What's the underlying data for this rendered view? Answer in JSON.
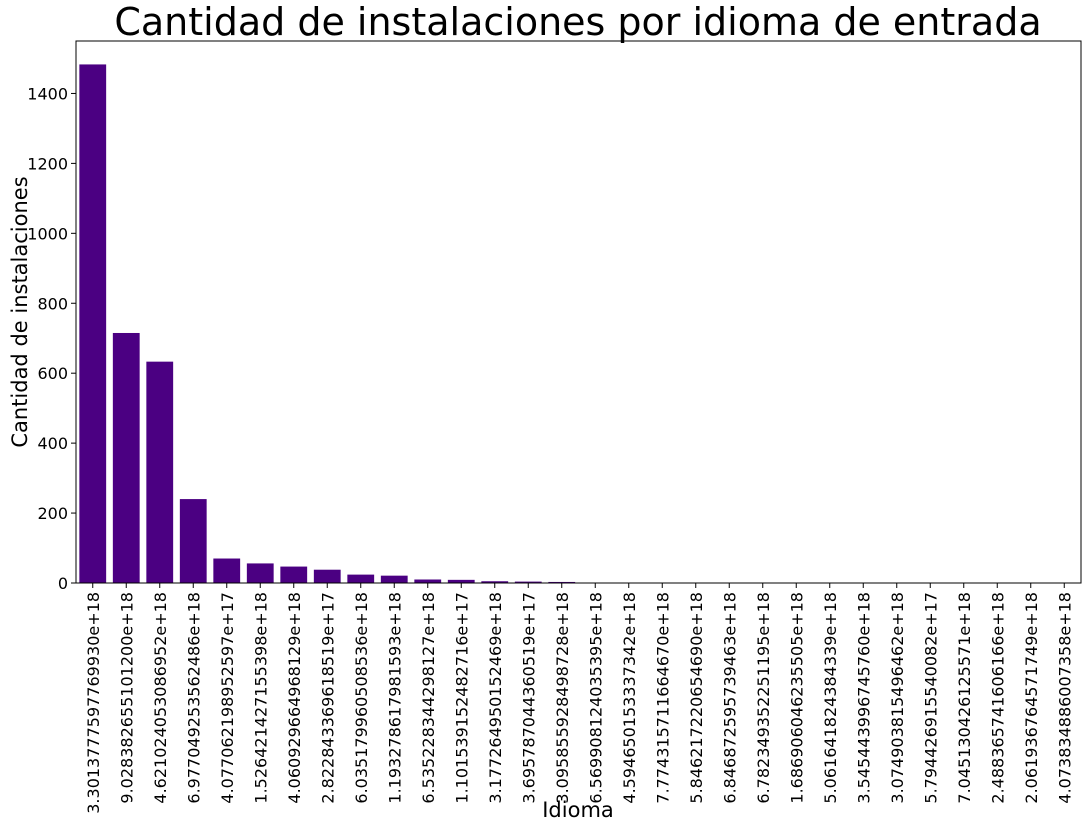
{
  "chart_data": {
    "type": "bar",
    "title": "Cantidad de instalaciones por idioma de entrada",
    "xlabel": "Idioma",
    "ylabel": "Cantidad de instalaciones",
    "ylim": [
      0,
      1550
    ],
    "yticks": [
      0,
      200,
      400,
      600,
      800,
      1000,
      1200,
      1400
    ],
    "grid": false,
    "bar_color": "#4b0082",
    "categories": [
      "3.3013777597769930e+18",
      "9.028382655101200e+18",
      "4.621024053086952e+18",
      "6.977049253562486e+18",
      "4.077062198952597e+17",
      "1.526421427155398e+18",
      "4.060929664968129e+18",
      "2.822843369618519e+17",
      "6.035179960508536e+18",
      "1.193278617981593e+18",
      "6.535228344298127e+18",
      "1.101539152482716e+17",
      "3.177264950152469e+18",
      "3.695787044360519e+17",
      "3.095855928498728e+18",
      "6.569908124035395e+18",
      "4.594650153337342e+18",
      "7.774315711664670e+18",
      "5.846217220654690e+18",
      "6.846872595739463e+18",
      "6.782349352251195e+18",
      "1.686906046235505e+18",
      "5.061641824384339e+18",
      "3.545443996745760e+18",
      "3.074903815496462e+18",
      "5.794426915540082e+17",
      "7.045130426125571e+18",
      "2.488365741606166e+18",
      "2.061936764571749e+18",
      "4.073834886007358e+18"
    ],
    "tick_labels": [
      "3.301377759776993e+18",
      "9.02838265510​12e+18",
      "4.621024053086952e+18",
      "6.977049253562486e+18",
      "4.077062198952597e+17",
      "1.526421427155398​14e+18",
      "4.060929664968129e+18",
      "2.822843369618519e+17",
      "6.035179960508536e+18",
      "1.193278617981593​3e+18",
      "6.535228344298127e+18",
      "1.101539152482716​3e+17",
      "3.177264950152469​5e+18",
      "3.695787044360519e+17",
      "3.095855928498728e+18",
      "6.569908124035395e+18",
      "4.594650153337342e+18",
      "7.774315711664670e+18",
      "5.846217220654690e+18",
      "6.846872595739463e+18",
      "6.782349352251195e+18",
      "1.686906046235505e+18",
      "5.061641824384339e+18",
      "3.545443996745760e+18",
      "3.074903815496462e+18",
      "5.794426915540082e+17",
      "7.045130426125571e+18",
      "2.488365741606166​5e+18",
      "2.061936764571749​6e+18",
      "4.073834886007358e+18"
    ],
    "values": [
      1483,
      715,
      633,
      240,
      70,
      56,
      47,
      38,
      24,
      21,
      10,
      9,
      5,
      4,
      3,
      1,
      1,
      1,
      1,
      1,
      1,
      1,
      1,
      1,
      1,
      1,
      1,
      1,
      1,
      1
    ]
  }
}
